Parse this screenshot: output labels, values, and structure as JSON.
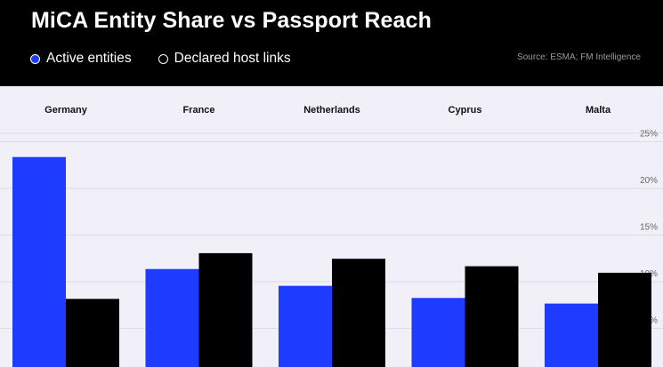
{
  "header": {
    "title": "MiCA Entity Share vs Passport Reach",
    "source": "Source: ESMA; FM Intelligence"
  },
  "colors": {
    "background": "#f1f0f9",
    "header": "#000000",
    "active": "#1e3cff",
    "declared": "#000000",
    "grid": "#dcdbe8"
  },
  "chart_data": {
    "type": "bar",
    "title": "MiCA Entity Share vs Passport Reach",
    "categories": [
      "Germany",
      "France",
      "Netherlands",
      "Cyprus",
      "Malta"
    ],
    "series": [
      {
        "name": "Active entities",
        "color": "#1e3cff",
        "values": [
          22.5,
          10.5,
          8.7,
          7.4,
          6.8
        ]
      },
      {
        "name": "Declared host links",
        "color": "#000000",
        "values": [
          7.3,
          12.2,
          11.6,
          10.8,
          10.1
        ]
      }
    ],
    "yticks": [
      "25%",
      "20%",
      "15%",
      "10%",
      "5%"
    ],
    "ytick_values": [
      25,
      20,
      15,
      10,
      5
    ],
    "ylim": [
      0,
      25
    ],
    "y_axis_position": "right",
    "legend_position": "top-left",
    "grid": true,
    "source": "Source: ESMA; FM Intelligence"
  }
}
